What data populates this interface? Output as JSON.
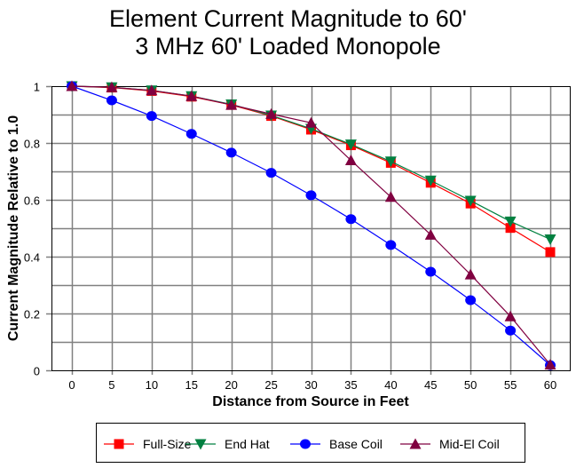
{
  "chart_data": {
    "type": "line",
    "title": "Element Current Magnitude to 60'",
    "subtitle": "3 MHz 60' Loaded Monopole",
    "xlabel": "Distance from Source in Feet",
    "ylabel": "Current Magnitude Relative to 1.0",
    "x": [
      0,
      5,
      10,
      15,
      20,
      25,
      30,
      35,
      40,
      45,
      50,
      55,
      60
    ],
    "xlim": [
      0,
      60
    ],
    "ylim": [
      0,
      1
    ],
    "xticks": [
      "0",
      "5",
      "10",
      "15",
      "20",
      "25",
      "30",
      "35",
      "40",
      "45",
      "50",
      "55",
      "60"
    ],
    "yticks": [
      {
        "value": 0,
        "label": "0"
      },
      {
        "value": 0.2,
        "label": "0.2"
      },
      {
        "value": 0.4,
        "label": "0.4"
      },
      {
        "value": 0.6,
        "label": "0.6"
      },
      {
        "value": 0.8,
        "label": "0.8"
      },
      {
        "value": 1,
        "label": "1"
      }
    ],
    "grid": true,
    "legend_position": "bottom",
    "series": [
      {
        "name": "Full-Size",
        "color": "#FF0000",
        "marker": "square",
        "values": [
          1.0,
          0.995,
          0.983,
          0.963,
          0.934,
          0.895,
          0.847,
          0.792,
          0.73,
          0.66,
          0.587,
          0.501,
          0.416
        ]
      },
      {
        "name": "End Hat",
        "color": "#008040",
        "marker": "triangle-down",
        "values": [
          1.0,
          0.996,
          0.985,
          0.965,
          0.936,
          0.897,
          0.85,
          0.795,
          0.735,
          0.668,
          0.597,
          0.524,
          0.461
        ]
      },
      {
        "name": "Base Coil",
        "color": "#0000FF",
        "marker": "circle",
        "values": [
          1.0,
          0.95,
          0.895,
          0.832,
          0.766,
          0.695,
          0.616,
          0.532,
          0.441,
          0.347,
          0.247,
          0.14,
          0.018
        ]
      },
      {
        "name": "Mid-El Coil",
        "color": "#800040",
        "marker": "triangle-up",
        "values": [
          1.0,
          0.996,
          0.985,
          0.965,
          0.934,
          0.902,
          0.871,
          0.739,
          0.61,
          0.477,
          0.337,
          0.19,
          0.02
        ]
      }
    ]
  }
}
